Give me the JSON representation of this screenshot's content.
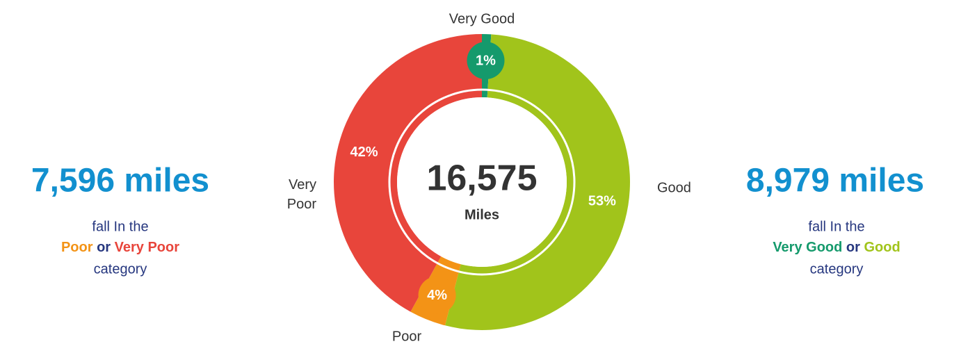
{
  "chart_data": {
    "type": "pie",
    "categories": [
      "Very Good",
      "Good",
      "Poor",
      "Very Poor"
    ],
    "values": [
      1,
      53,
      4,
      42
    ],
    "value_labels": [
      "1%",
      "53%",
      "4%",
      "42%"
    ],
    "colors": [
      "#159a6c",
      "#a1c41b",
      "#f39316",
      "#e8453b"
    ],
    "center_value": "16,575",
    "center_label": "Miles"
  },
  "left_panel": {
    "headline": "7,596 miles",
    "line1": "fall In the",
    "first": "Poor",
    "joiner": "or",
    "second": "Very Poor",
    "line3": "category"
  },
  "right_panel": {
    "headline": "8,979 miles",
    "line1": "fall In the",
    "first": "Very Good",
    "joiner": "or",
    "second": "Good",
    "line3": "category"
  }
}
